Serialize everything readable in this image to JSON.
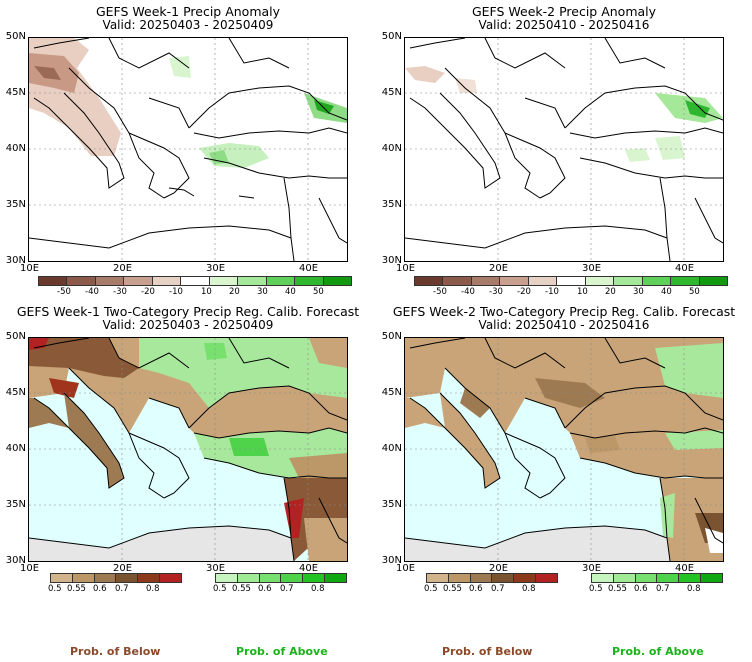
{
  "panels": [
    {
      "title": "GEFS Week-1 Precip Anomaly",
      "valid": "Valid: 20250403 - 20250409"
    },
    {
      "title": "GEFS Week-2 Precip Anomaly",
      "valid": "Valid: 20250410 - 20250416"
    },
    {
      "title": "GEFS Week-1 Two-Category Precip Reg. Calib. Forecast",
      "valid": "Valid: 20250403 - 20250409"
    },
    {
      "title": "GEFS Week-2 Two-Category Precip Reg. Calib. Forecast",
      "valid": "Valid: 20250410 - 20250416"
    }
  ],
  "lat_labels": [
    "50N",
    "45N",
    "40N",
    "35N",
    "30N"
  ],
  "lon_labels": [
    "10E",
    "20E",
    "30E",
    "40E"
  ],
  "anomaly_colorbar": {
    "labels": [
      "-50",
      "-40",
      "-30",
      "-20",
      "-10",
      "10",
      "20",
      "30",
      "40",
      "50"
    ],
    "colors": [
      "#6b3a2e",
      "#8c5a4a",
      "#a87a68",
      "#c8a090",
      "#e6d2c4",
      "#ffffff",
      "#d8f5d0",
      "#a6e89a",
      "#5fd05a",
      "#2fb82f",
      "#119a11"
    ]
  },
  "below_colorbar": {
    "labels": [
      "0.5",
      "0.55",
      "0.6",
      "0.7",
      "0.8"
    ],
    "colors": [
      "#d2b48c",
      "#bc9768",
      "#9e7a52",
      "#7a5430",
      "#8b3a1a",
      "#b22222"
    ]
  },
  "above_colorbar": {
    "labels": [
      "0.5",
      "0.55",
      "0.6",
      "0.7",
      "0.8"
    ],
    "colors": [
      "#c6f5c0",
      "#a2eb96",
      "#78e06e",
      "#4fd34a",
      "#22c322",
      "#10a810"
    ]
  },
  "legend": {
    "below": "Prob. of Below",
    "above": "Prob. of Above"
  },
  "colors": {
    "below_text": "#8b4a2b",
    "above_text": "#19b419",
    "sea_blue": "#e0ffff",
    "land_tan": "#c8a478",
    "land_green": "#a8e89c",
    "grey": "#e6e6e6"
  }
}
